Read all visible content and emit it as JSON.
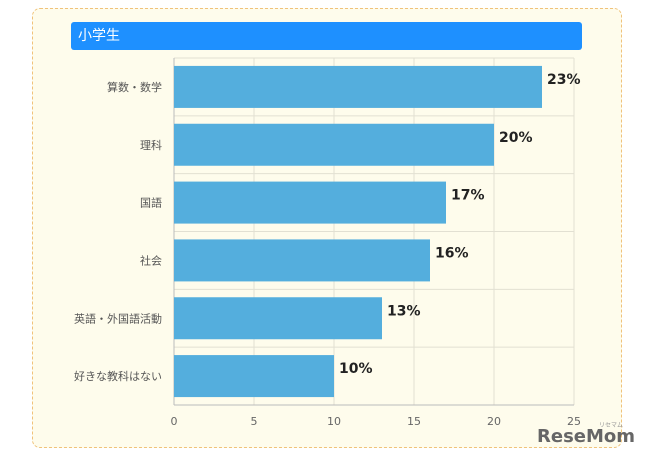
{
  "header": {
    "title": "小学生"
  },
  "watermark": {
    "brand": "ReseMom",
    "sub": "リセマム"
  },
  "colors": {
    "bar": "#54aedd",
    "header": "#1e90ff",
    "panel_bg": "#fefcec",
    "panel_border": "#f0c27a"
  },
  "chart_data": {
    "type": "bar",
    "orientation": "horizontal",
    "categories": [
      "算数・数学",
      "理科",
      "国語",
      "社会",
      "英語・外国語活動",
      "好きな教科はない"
    ],
    "values": [
      23,
      20,
      17,
      16,
      13,
      10
    ],
    "value_labels": [
      "23%",
      "20%",
      "17%",
      "16%",
      "13%",
      "10%"
    ],
    "xlim": [
      0,
      25
    ],
    "xticks": [
      0,
      5,
      10,
      15,
      20,
      25
    ],
    "grid": true
  }
}
